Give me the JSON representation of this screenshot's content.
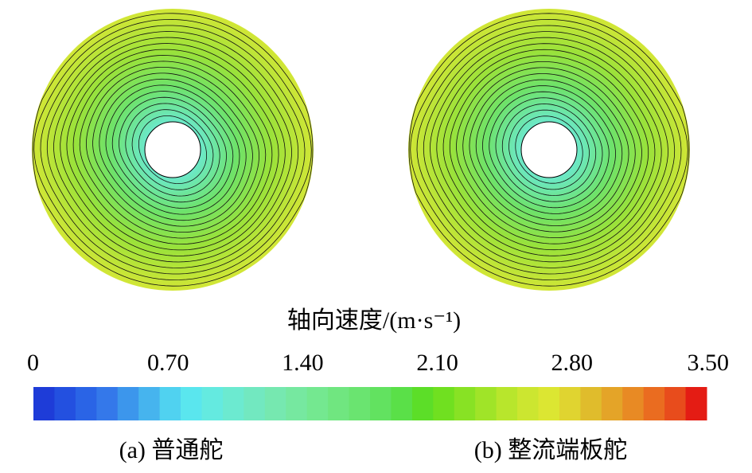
{
  "colorbar": {
    "title": "轴向速度/(m·s⁻¹)",
    "lim": [
      0,
      3.5
    ],
    "ticks": [
      {
        "value": 0,
        "label": "0"
      },
      {
        "value": 0.7,
        "label": "0.70"
      },
      {
        "value": 1.4,
        "label": "1.40"
      },
      {
        "value": 2.1,
        "label": "2.10"
      },
      {
        "value": 2.8,
        "label": "2.80"
      },
      {
        "value": 3.5,
        "label": "3.50"
      }
    ],
    "colors": [
      "#1e3cd8",
      "#2350e0",
      "#2a64e6",
      "#3478ea",
      "#3c96ec",
      "#46b4ee",
      "#50d2f0",
      "#5ae6ee",
      "#64eae0",
      "#6cead0",
      "#72e8c0",
      "#76e8b0",
      "#76e8a0",
      "#74e890",
      "#70e680",
      "#6ae470",
      "#62e260",
      "#5ae048",
      "#5cde28",
      "#70e020",
      "#88e224",
      "#a0e428",
      "#b8e62c",
      "#cce630",
      "#dce632",
      "#e0d430",
      "#e0bc2c",
      "#e4a428",
      "#e88a24",
      "#ea6c20",
      "#e84c1c",
      "#e41c14"
    ]
  },
  "panels": [
    {
      "label": "(a) 普通舵"
    },
    {
      "label": "(b) 整流端板舵"
    }
  ]
}
